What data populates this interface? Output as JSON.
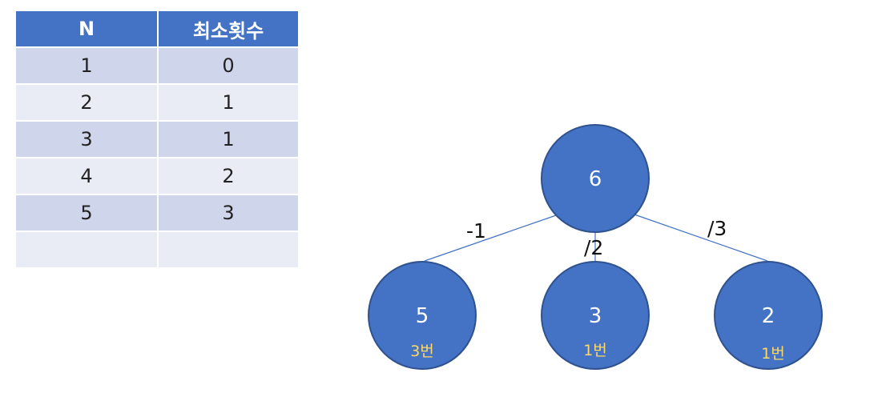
{
  "table": {
    "headers": [
      "N",
      "최소횟수"
    ],
    "rows": [
      [
        "1",
        "0"
      ],
      [
        "2",
        "1"
      ],
      [
        "3",
        "1"
      ],
      [
        "4",
        "2"
      ],
      [
        "5",
        "3"
      ],
      [
        "",
        ""
      ]
    ]
  },
  "tree": {
    "root": {
      "value": "6"
    },
    "children": [
      {
        "value": "5",
        "edge": "-1",
        "count": "3번"
      },
      {
        "value": "3",
        "edge": "/2",
        "count": "1번"
      },
      {
        "value": "2",
        "edge": "/3",
        "count": "1번"
      }
    ]
  },
  "colors": {
    "header_bg": "#4472c4",
    "row_dark": "#cfd5ea",
    "row_light": "#e9ebf5",
    "node_fill": "#4472c4",
    "count_text": "#ffd966"
  }
}
